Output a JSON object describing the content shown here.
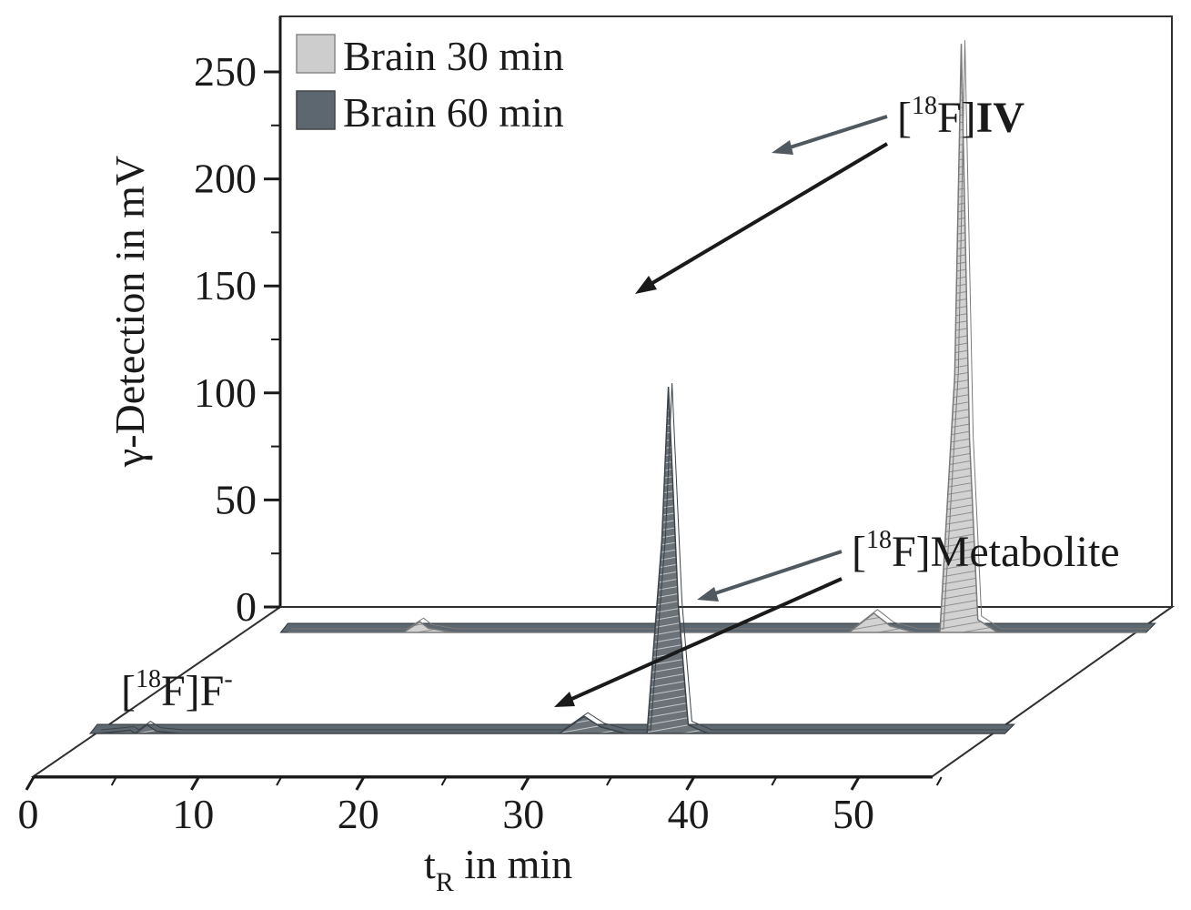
{
  "chart_data": {
    "type": "line",
    "subtype": "3d-waterfall",
    "title": "",
    "xlabel": "t",
    "xlabel_sub": "R",
    "xlabel_rest": " in min",
    "ylabel": "γ-Detection in mV",
    "xlim": [
      0,
      55
    ],
    "ylim": [
      0,
      275
    ],
    "xticks": [
      0,
      10,
      20,
      30,
      40,
      50
    ],
    "yticks": [
      0,
      50,
      100,
      150,
      200,
      250
    ],
    "legend_position": "top-left",
    "grid": false,
    "series": [
      {
        "name": "Brain 30 min",
        "color": "#cdcdcd",
        "points": [
          [
            3,
            0
          ],
          [
            10,
            0
          ],
          [
            11,
            5
          ],
          [
            11.5,
            2
          ],
          [
            13,
            0
          ],
          [
            37,
            0
          ],
          [
            38.5,
            9
          ],
          [
            39.5,
            3
          ],
          [
            41,
            0
          ],
          [
            42.5,
            0
          ],
          [
            43.4,
            120
          ],
          [
            43.8,
            275
          ],
          [
            44.3,
            90
          ],
          [
            44.8,
            6
          ],
          [
            46,
            0
          ],
          [
            55,
            0
          ]
        ]
      },
      {
        "name": "Brain 60 min",
        "color": "#5d6770",
        "points": [
          [
            0,
            0
          ],
          [
            2,
            1.5
          ],
          [
            2.3,
            0
          ],
          [
            3,
            4
          ],
          [
            3.6,
            1
          ],
          [
            5,
            0
          ],
          [
            28,
            0
          ],
          [
            29.5,
            8
          ],
          [
            30.5,
            3
          ],
          [
            32,
            0
          ],
          [
            33.3,
            0
          ],
          [
            34.2,
            90
          ],
          [
            34.6,
            162
          ],
          [
            35.2,
            60
          ],
          [
            35.8,
            4
          ],
          [
            37,
            0
          ],
          [
            55,
            0
          ]
        ]
      }
    ],
    "annotations": [
      {
        "id": "iv",
        "prefix": "[",
        "sup": "18",
        "mid": "F]",
        "bold": "IV"
      },
      {
        "id": "metabolite",
        "prefix": "[",
        "sup": "18",
        "mid": "F]Metabolite"
      },
      {
        "id": "fluoride",
        "prefix": "[",
        "sup": "18",
        "mid": "F]F",
        "tail_sup": "-"
      }
    ]
  }
}
